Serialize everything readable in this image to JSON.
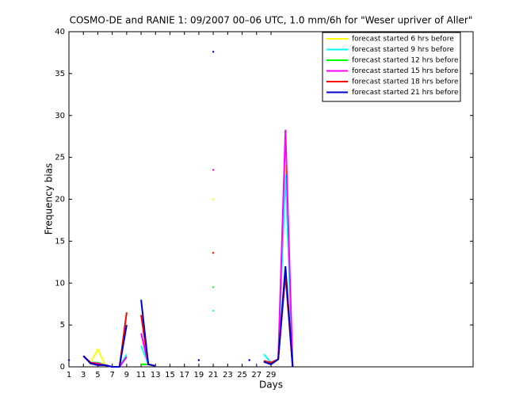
{
  "chart_data": {
    "type": "line",
    "title": "COSMO-DE and RANIE 1: 09/2007 00–06 UTC, 1.0 mm/6h for \"Weser upriver of Aller\"",
    "x_label": "Days",
    "y_label": "Frequency bias",
    "x": [
      1,
      2,
      3,
      4,
      5,
      6,
      7,
      8,
      9,
      10,
      11,
      12,
      13,
      14,
      15,
      16,
      17,
      18,
      19,
      20,
      21,
      22,
      23,
      24,
      25,
      26,
      27,
      28,
      29,
      30,
      31,
      32
    ],
    "xlim": [
      1,
      57
    ],
    "ylim": [
      0,
      40
    ],
    "xticks": [
      1,
      3,
      5,
      7,
      9,
      11,
      13,
      15,
      17,
      19,
      21,
      23,
      25,
      27,
      29
    ],
    "yticks": [
      0,
      5,
      10,
      15,
      20,
      25,
      30,
      35,
      40
    ],
    "legend_position": "upper right",
    "series": [
      {
        "name": "forecast started 6 hrs before",
        "color": "#ffff00",
        "values": [
          0.8,
          null,
          1.3,
          0.5,
          2.1,
          0.2,
          0,
          0,
          1.2,
          null,
          0.3,
          0.3,
          0.1,
          null,
          null,
          null,
          null,
          null,
          0.8,
          null,
          20,
          null,
          null,
          null,
          null,
          0.8,
          null,
          0.7,
          0.5,
          0.9,
          24,
          0
        ]
      },
      {
        "name": "forecast started 9 hrs before",
        "color": "#00ffff",
        "values": [
          0.8,
          null,
          1.3,
          0.5,
          0.5,
          0.2,
          0,
          0,
          1.5,
          null,
          2.5,
          0.3,
          0.1,
          null,
          null,
          null,
          null,
          null,
          0.8,
          null,
          6.7,
          null,
          null,
          null,
          null,
          0.8,
          null,
          1.5,
          0.5,
          0.9,
          23,
          0
        ]
      },
      {
        "name": "forecast started 12 hrs before",
        "color": "#00ff00",
        "values": [
          0.8,
          null,
          1.3,
          0.5,
          0.5,
          0.2,
          0,
          0,
          1.2,
          null,
          0.3,
          0.3,
          0.1,
          null,
          null,
          null,
          null,
          null,
          0.8,
          null,
          9.5,
          null,
          null,
          null,
          null,
          0.8,
          null,
          0.7,
          0.5,
          0.9,
          11,
          0
        ]
      },
      {
        "name": "forecast started 15 hrs before",
        "color": "#ff00ff",
        "values": [
          0.8,
          null,
          1.3,
          0.5,
          0.4,
          0.2,
          0,
          0,
          1.2,
          null,
          4,
          0.3,
          0.1,
          null,
          null,
          null,
          null,
          null,
          0.8,
          null,
          23.5,
          null,
          null,
          null,
          null,
          0.8,
          null,
          0.7,
          0.5,
          0.9,
          28.3,
          0
        ]
      },
      {
        "name": "forecast started 18 hrs before",
        "color": "#ff0000",
        "values": [
          0.8,
          null,
          1.3,
          0.5,
          0.3,
          0.2,
          0,
          0,
          6.5,
          null,
          6.2,
          0.3,
          0.1,
          null,
          null,
          null,
          null,
          null,
          0.8,
          null,
          13.6,
          null,
          null,
          null,
          null,
          0.8,
          null,
          0.7,
          0.5,
          0.9,
          11,
          0
        ]
      },
      {
        "name": "forecast started 21 hrs before",
        "color": "#0000cc",
        "values": [
          0.8,
          null,
          1.3,
          0.4,
          0.2,
          0.2,
          0,
          0,
          5,
          null,
          8,
          0.3,
          0.1,
          null,
          null,
          null,
          null,
          null,
          0.8,
          null,
          37.6,
          null,
          null,
          null,
          null,
          0.8,
          null,
          0.6,
          0.3,
          0.9,
          12,
          0
        ]
      }
    ]
  }
}
